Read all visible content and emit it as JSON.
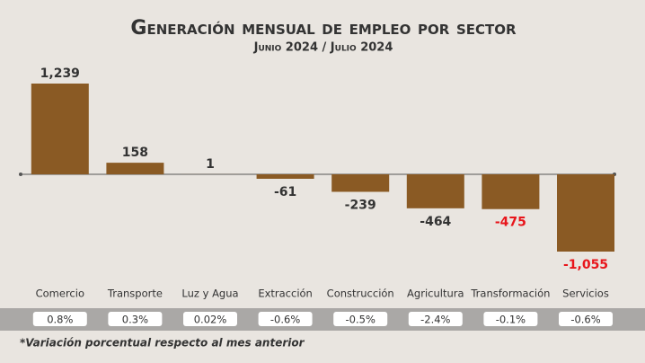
{
  "chart_data": {
    "type": "bar",
    "title": "Generación mensual de empleo por sector",
    "subtitle": "Junio 2024 / Julio 2024",
    "categories": [
      "Comercio",
      "Transporte",
      "Luz y Agua",
      "Extracción",
      "Construcción",
      "Agricultura",
      "Transformación",
      "Servicios"
    ],
    "values": [
      1239,
      158,
      1,
      -61,
      -239,
      -464,
      -475,
      -1055
    ],
    "value_labels": [
      "1,239",
      "158",
      "1",
      "-61",
      "-239",
      "-464",
      "-475",
      "-1,055"
    ],
    "value_label_colors": [
      "#333333",
      "#333333",
      "#333333",
      "#333333",
      "#333333",
      "#333333",
      "#e8151b",
      "#e8151b"
    ],
    "color": "#8a5a24",
    "percent_labels": [
      "0.8%",
      "0.3%",
      "0.02%",
      "-0.6%",
      "-0.5%",
      "-2.4%",
      "-0.1%",
      "-0.6%"
    ],
    "footnote": "*Variación porcentual respecto al mes anterior"
  }
}
